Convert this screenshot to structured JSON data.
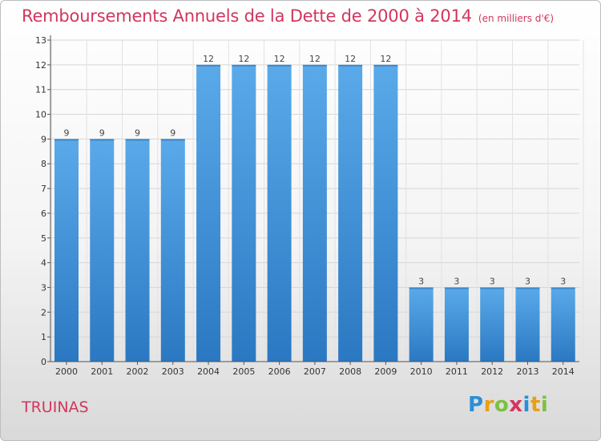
{
  "title": "Remboursements Annuels de la Dette de 2000 à 2014",
  "unit_note": "(en milliers d'€)",
  "commune": "TRUINAS",
  "logo": "Proxiti",
  "colors": {
    "title": "#d1365e",
    "bar_top": "#5aaaea",
    "bar_bottom": "#2b78c2"
  },
  "chart_data": {
    "type": "bar",
    "title": "Remboursements Annuels de la Dette de 2000 à 2014",
    "xlabel": "",
    "ylabel": "",
    "categories": [
      "2000",
      "2001",
      "2002",
      "2003",
      "2004",
      "2005",
      "2006",
      "2007",
      "2008",
      "2009",
      "2010",
      "2011",
      "2012",
      "2013",
      "2014"
    ],
    "values": [
      9,
      9,
      9,
      9,
      12,
      12,
      12,
      12,
      12,
      12,
      3,
      3,
      3,
      3,
      3
    ],
    "ylim": [
      0,
      13
    ],
    "yticks": [
      0,
      1,
      2,
      3,
      4,
      5,
      6,
      7,
      8,
      9,
      10,
      11,
      12,
      13
    ],
    "grid": true,
    "data_labels": true
  }
}
